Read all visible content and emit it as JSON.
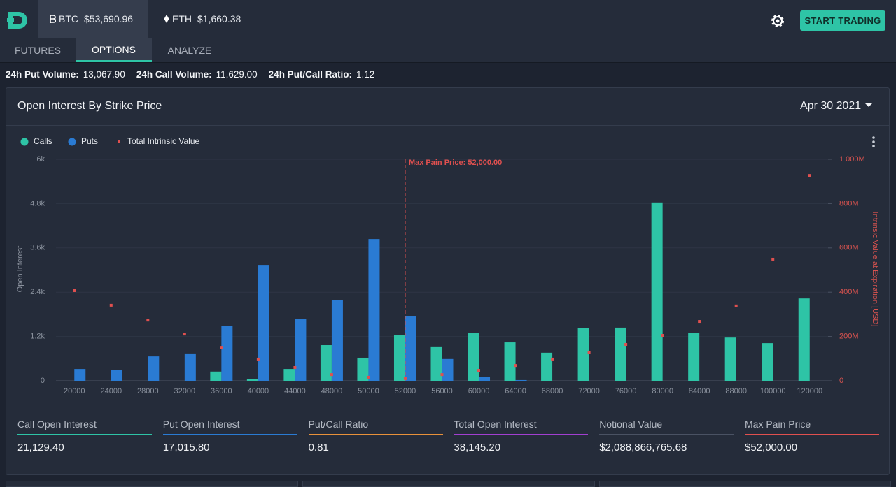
{
  "header": {
    "tickers": [
      {
        "symbol": "BTC",
        "price": "$53,690.96"
      },
      {
        "symbol": "ETH",
        "price": "$1,660.38"
      }
    ],
    "button": "START TRADING"
  },
  "tabs": [
    "FUTURES",
    "OPTIONS",
    "ANALYZE"
  ],
  "stats": [
    {
      "label": "24h Put Volume:",
      "value": "13,067.90"
    },
    {
      "label": "24h Call Volume:",
      "value": "11,629.00"
    },
    {
      "label": "24h Put/Call Ratio:",
      "value": "1.12"
    }
  ],
  "panel": {
    "title": "Open Interest By Strike Price",
    "date": "Apr 30 2021"
  },
  "chart_data": {
    "type": "bar",
    "categories": [
      "20000",
      "24000",
      "28000",
      "32000",
      "36000",
      "40000",
      "44000",
      "48000",
      "50000",
      "52000",
      "56000",
      "60000",
      "64000",
      "68000",
      "72000",
      "76000",
      "80000",
      "84000",
      "88000",
      "100000",
      "120000"
    ],
    "series": [
      {
        "name": "Calls",
        "color": "#2ec4a6",
        "values": [
          0,
          0,
          0,
          0,
          250,
          50,
          320,
          965,
          625,
          1230,
          930,
          1290,
          1040,
          760,
          1420,
          1440,
          4830,
          1290,
          1170,
          1020,
          2230
        ]
      },
      {
        "name": "Puts",
        "color": "#2a7bd3",
        "values": [
          320,
          300,
          660,
          740,
          1480,
          3140,
          1680,
          2180,
          3840,
          1760,
          590,
          95,
          20,
          0,
          0,
          0,
          0,
          0,
          0,
          0,
          0
        ]
      },
      {
        "name": "Total Intrinsic Value",
        "type": "scatter",
        "axis": "y2",
        "color": "#e0504f",
        "values": [
          407000000,
          341000000,
          274000000,
          211000000,
          151000000,
          98000000,
          60000000,
          28000000,
          16000000,
          10000000,
          28000000,
          47000000,
          69000000,
          98000000,
          129000000,
          164000000,
          205000000,
          268000000,
          338000000,
          549000000,
          927000000
        ]
      }
    ],
    "ylabel": "Open Interest",
    "y2label": "Intrinsic Value at Expiration [USD]",
    "ylim": [
      0,
      6000
    ],
    "yticks": [
      0,
      {
        "value": 1200,
        "label": "1.2k"
      },
      {
        "value": 2400,
        "label": "2.4k"
      },
      {
        "value": 3600,
        "label": "3.6k"
      },
      {
        "value": 4800,
        "label": "4.8k"
      },
      {
        "value": 6000,
        "label": "6k"
      }
    ],
    "y2lim": [
      0,
      1000000000
    ],
    "y2ticks": [
      0,
      {
        "value": 200000000,
        "label": "200M"
      },
      {
        "value": 400000000,
        "label": "400M"
      },
      {
        "value": 600000000,
        "label": "600M"
      },
      {
        "value": 800000000,
        "label": "800M"
      },
      {
        "value": 1000000000,
        "label": "1 000M"
      }
    ],
    "grid": true,
    "legend": "top-left",
    "annotation": {
      "label": "Max Pain Price: 52,000.00",
      "x": "52000",
      "color": "#e0504f"
    }
  },
  "summary": [
    {
      "label": "Call Open Interest",
      "value": "21,129.40",
      "color": "#2ec4a6"
    },
    {
      "label": "Put Open Interest",
      "value": "17,015.80",
      "color": "#2a7bd3"
    },
    {
      "label": "Put/Call Ratio",
      "value": "0.81",
      "color": "#e8913a"
    },
    {
      "label": "Total Open Interest",
      "value": "38,145.20",
      "color": "#a23fd0"
    },
    {
      "label": "Notional Value",
      "value": "$2,088,866,765.68",
      "color": "#4a5263"
    },
    {
      "label": "Max Pain Price",
      "value": "$52,000.00",
      "color": "#e0504f"
    }
  ]
}
